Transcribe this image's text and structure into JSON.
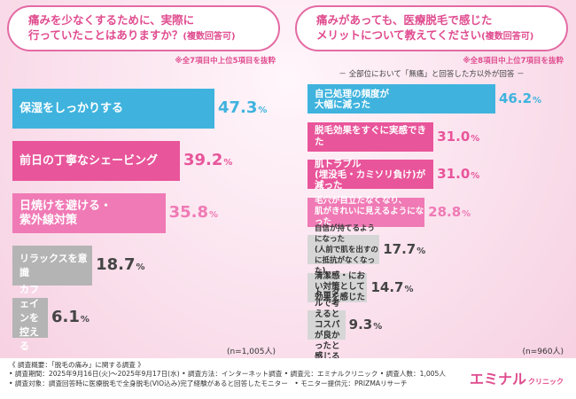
{
  "left": {
    "question_line1": "痛みを少なくするために、実際に",
    "question_line2": "行っていたことはありますか？",
    "question_sub": "(複数回答可)",
    "note": "※全7項目中上位5項目を抜粋",
    "n": "(n=1,005人)"
  },
  "right": {
    "question_line1": "痛みがあっても、医療脱毛で感じた",
    "question_line2": "メリットについて教えてください",
    "question_sub": "(複数回答可)",
    "note": "※全8項目中上位7項目を抜粋",
    "subnote": "－ 全部位において「無痛」と回答した方以外が回答 －",
    "n": "(n=960人)"
  },
  "chart_data": [
    {
      "type": "bar",
      "orientation": "horizontal",
      "categories": [
        "保湿をしっかりする",
        "前日の丁寧なシェービング",
        "日焼けを避ける・\n紫外線対策",
        "リラックスを意識",
        "カフェインを控える"
      ],
      "values": [
        47.3,
        39.2,
        35.8,
        18.7,
        6.1
      ],
      "unit": "%",
      "colors": [
        "#3fb3de",
        "#e8559a",
        "#f07ab5",
        "#b4b4b4",
        "#b4b4b4"
      ]
    },
    {
      "type": "bar",
      "orientation": "horizontal",
      "categories": [
        "自己処理の頻度が\n大幅に減った",
        "脱毛効果をすぐに実感できた",
        "肌トラブル\n(埋没毛・カミソリ負け)が減った",
        "毛穴が目立たなくなり、\n肌がきれいに見えるようになった",
        "自信が持てるようになった\n(人前で肌を出すのに抵抗がなくなった)",
        "清潔感・におい対策として\n効果を感じた",
        "トータルで考えると\nコスパが良かったと感じる"
      ],
      "values": [
        46.2,
        31.0,
        31.0,
        28.8,
        17.7,
        14.7,
        9.3
      ],
      "unit": "%",
      "colors": [
        "#3fb3de",
        "#e8559a",
        "#e8559a",
        "#f07ab5",
        "#d6d6d6",
        "#d6d6d6",
        "#d6d6d6"
      ]
    }
  ],
  "footer": {
    "line1": "《 調査概要：「脱毛の痛み」に関する調査 》",
    "line2": "• 調査期間：2025年9月16日(火)～2025年9月17日(水) • 調査方法：インターネット調査 • 調査元：エミナルクリニック • 調査人数：1,005人",
    "line3": "• 調査対象：調査回答時に医療脱毛で全身脱毛(VIO込み)完了経験があると回答したモニター　• モニター提供元：PRIZMAリサーチ"
  },
  "logo": {
    "main": "エミナル",
    "sub": "クリニック"
  }
}
